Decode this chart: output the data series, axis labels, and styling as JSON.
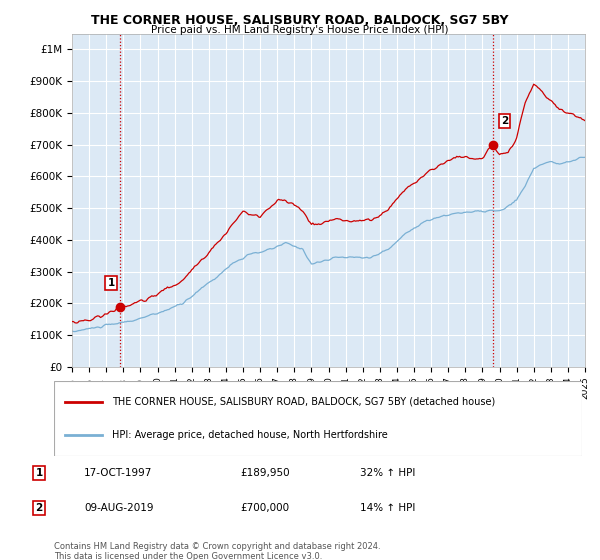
{
  "title": "THE CORNER HOUSE, SALISBURY ROAD, BALDOCK, SG7 5BY",
  "subtitle": "Price paid vs. HM Land Registry's House Price Index (HPI)",
  "title_color": "#000000",
  "bg_color": "#ffffff",
  "plot_bg_color": "#dce9f5",
  "grid_color": "#ffffff",
  "red_line_color": "#cc0000",
  "blue_line_color": "#7ab0d4",
  "ylim": [
    0,
    1050000
  ],
  "yticks": [
    0,
    100000,
    200000,
    300000,
    400000,
    500000,
    600000,
    700000,
    800000,
    900000,
    1000000
  ],
  "ytick_labels": [
    "£0",
    "£100K",
    "£200K",
    "£300K",
    "£400K",
    "£500K",
    "£600K",
    "£700K",
    "£800K",
    "£900K",
    "£1M"
  ],
  "year_start": 1995,
  "year_end": 2025,
  "sale1_year": 1997.79,
  "sale1_price": 189950,
  "sale1_label": "1",
  "sale2_year": 2019.6,
  "sale2_price": 700000,
  "sale2_label": "2",
  "legend_line1": "THE CORNER HOUSE, SALISBURY ROAD, BALDOCK, SG7 5BY (detached house)",
  "legend_line2": "HPI: Average price, detached house, North Hertfordshire",
  "table_row1": [
    "1",
    "17-OCT-1997",
    "£189,950",
    "32% ↑ HPI"
  ],
  "table_row2": [
    "2",
    "09-AUG-2019",
    "£700,000",
    "14% ↑ HPI"
  ],
  "footnote": "Contains HM Land Registry data © Crown copyright and database right 2024.\nThis data is licensed under the Open Government Licence v3.0."
}
